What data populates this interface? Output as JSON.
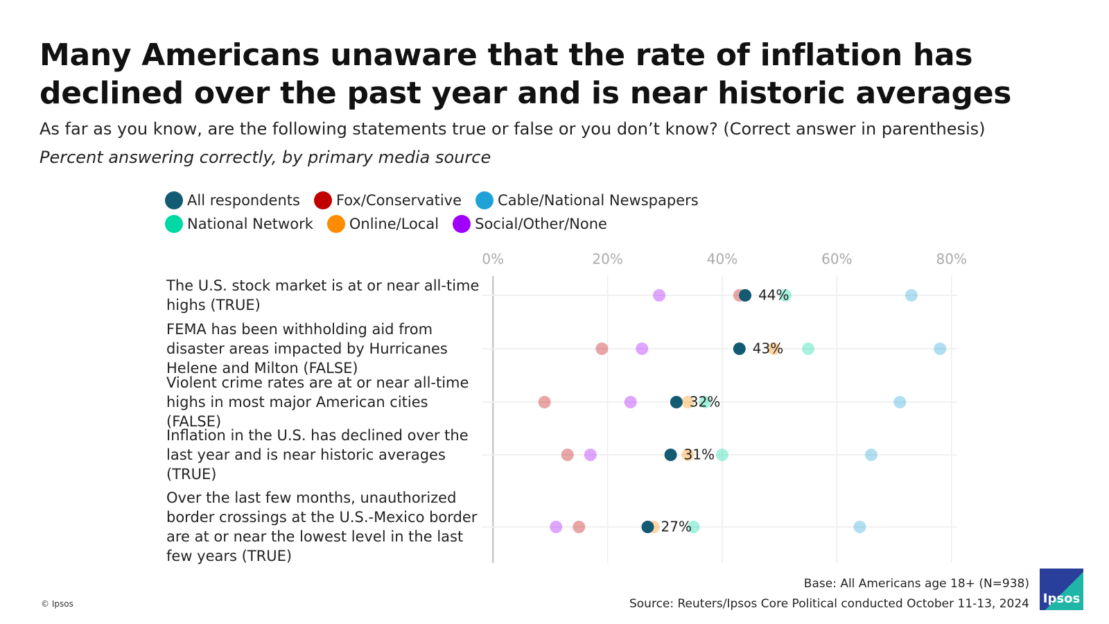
{
  "chart_data": {
    "type": "dot",
    "title": "Many Americans unaware that the rate of inflation has declined over the past year and is near historic averages",
    "subtitle": "As far as you know, are the following statements true or false or you don’t know? (Correct answer in parenthesis)",
    "subtitle2": "Percent answering correctly, by primary media source",
    "categories": [
      "The U.S. stock market is at or near all-time highs (TRUE)",
      "FEMA has been withholding aid from disaster areas impacted by Hurricanes Helene and Milton (FALSE)",
      "Violent crime rates are at or near all-time highs in most major American cities (FALSE)",
      "Inflation in the U.S. has declined over the last year and is near historic averages (TRUE)",
      "Over the last few months, unauthorized border crossings at the U.S.-Mexico border are at or near the lowest level in the last few years (TRUE)"
    ],
    "series": [
      {
        "name": "Fox/Conservative",
        "color": "#c00000",
        "opacity": 0.35,
        "values": [
          43,
          19,
          9,
          13,
          15
        ]
      },
      {
        "name": "Social/Other/None",
        "color": "#a100ff",
        "opacity": 0.35,
        "values": [
          29,
          26,
          24,
          17,
          11
        ]
      },
      {
        "name": "Cable/National Newspapers",
        "color": "#1fa2d8",
        "opacity": 0.35,
        "values": [
          73,
          78,
          71,
          66,
          64
        ]
      },
      {
        "name": "National Network",
        "color": "#00d9a3",
        "opacity": 0.35,
        "values": [
          51,
          55,
          37,
          40,
          35
        ]
      },
      {
        "name": "Online/Local",
        "color": "#ff8c00",
        "opacity": 0.35,
        "values": [
          44,
          49,
          34,
          34,
          28
        ]
      },
      {
        "name": "All respondents",
        "color": "#135a73",
        "opacity": 1,
        "values": [
          44,
          43,
          32,
          31,
          27
        ],
        "value_labels": [
          "44%",
          "43%",
          "32%",
          "31%",
          "27%"
        ]
      }
    ],
    "legend_order": [
      5,
      0,
      2,
      3,
      4,
      1
    ],
    "xlim": [
      -1,
      81
    ],
    "xticks": [
      {
        "value": 0,
        "label": "0%"
      },
      {
        "value": 20,
        "label": "20%"
      },
      {
        "value": 40,
        "label": "40%"
      },
      {
        "value": 60,
        "label": "60%"
      },
      {
        "value": 80,
        "label": "80%"
      }
    ],
    "grid": true,
    "base_note": "Base: All Americans age 18+ (N=938)",
    "source": "Source: Reuters/Ipsos Core Political conducted October 11-13, 2024",
    "copyright": "© Ipsos",
    "logo_text": "Ipsos"
  }
}
